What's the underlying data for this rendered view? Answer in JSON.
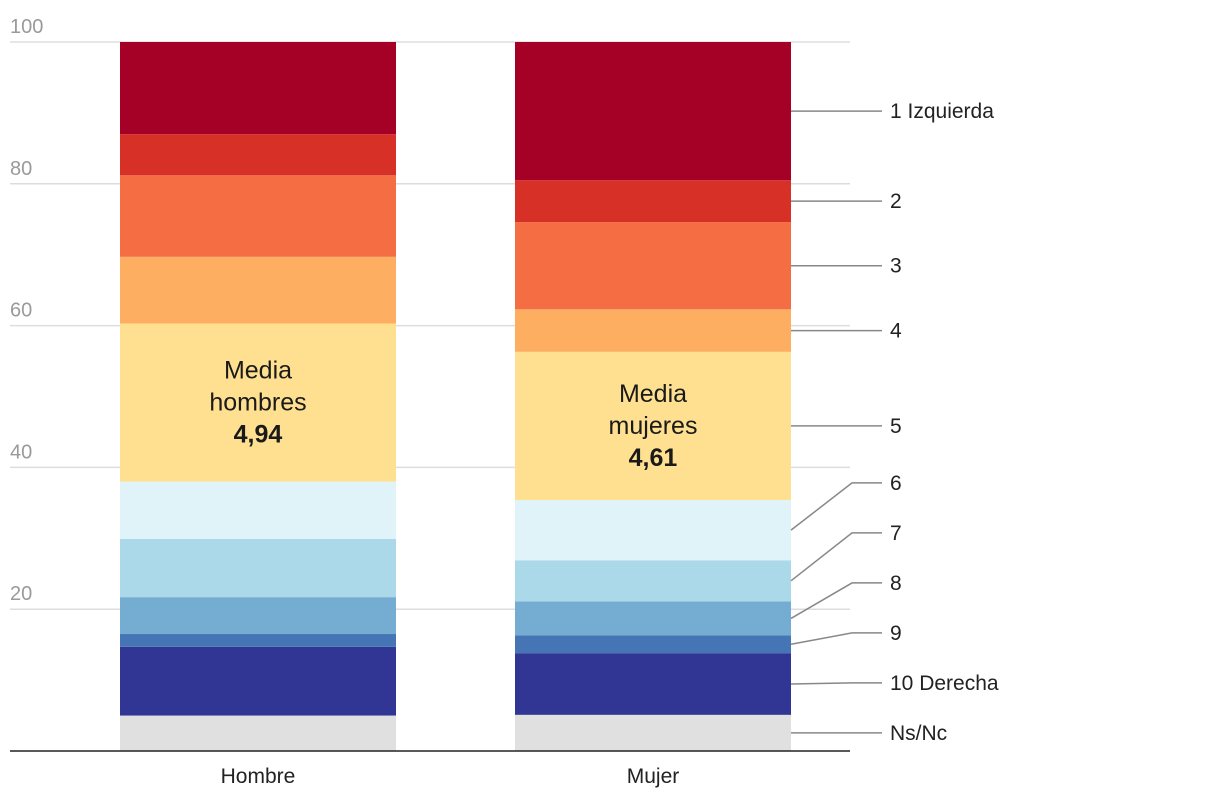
{
  "chart_data": {
    "type": "bar",
    "stacked": true,
    "title": "",
    "xlabel": "",
    "ylabel": "",
    "ylim": [
      0,
      100
    ],
    "yticks": [
      20,
      40,
      60,
      80,
      100
    ],
    "grid": true,
    "legend": "right",
    "categories": [
      "Hombre",
      "Mujer"
    ],
    "series": [
      {
        "name": "Ns/Nc",
        "color": "#e0e0e0",
        "values": [
          5.0,
          5.1
        ]
      },
      {
        "name": "10 Derecha",
        "color": "#313695",
        "values": [
          9.7,
          8.7
        ]
      },
      {
        "name": "9",
        "color": "#4575b4",
        "values": [
          1.8,
          2.5
        ]
      },
      {
        "name": "8",
        "color": "#74add1",
        "values": [
          5.2,
          4.8
        ]
      },
      {
        "name": "7",
        "color": "#abd9e9",
        "values": [
          8.2,
          5.8
        ]
      },
      {
        "name": "6",
        "color": "#e0f3f8",
        "values": [
          8.1,
          8.5
        ]
      },
      {
        "name": "5",
        "color": "#fee090",
        "values": [
          22.3,
          20.9
        ]
      },
      {
        "name": "4",
        "color": "#fdae61",
        "values": [
          9.4,
          6.0
        ]
      },
      {
        "name": "3",
        "color": "#f46d43",
        "values": [
          11.5,
          12.3
        ]
      },
      {
        "name": "2",
        "color": "#d73027",
        "values": [
          5.8,
          5.9
        ]
      },
      {
        "name": "1 Izquierda",
        "color": "#a50026",
        "values": [
          13.0,
          19.5
        ]
      }
    ],
    "annotations": [
      {
        "category": "Hombre",
        "lines": [
          "Media",
          "hombres"
        ],
        "value": "4,94"
      },
      {
        "category": "Mujer",
        "lines": [
          "Media",
          "mujeres"
        ],
        "value": "4,61"
      }
    ]
  }
}
